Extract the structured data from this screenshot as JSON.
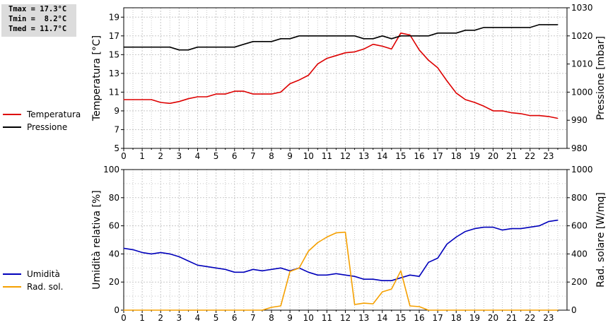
{
  "stats": {
    "tmax": "Tmax = 17.3°C",
    "tmin": "Tmin =  8.2°C",
    "tmed": "Tmed = 11.7°C"
  },
  "colors": {
    "temperature": "#dd0000",
    "pressure": "#000000",
    "humidity": "#0000bb",
    "radiation": "#f5a000",
    "grid": "#c8c8c8"
  },
  "chart_data": [
    {
      "type": "line",
      "xlim": [
        0,
        24
      ],
      "xticks": [
        "0",
        "1",
        "2",
        "3",
        "4",
        "5",
        "6",
        "7",
        "8",
        "9",
        "10",
        "11",
        "12",
        "13",
        "14",
        "15",
        "16",
        "17",
        "18",
        "19",
        "20",
        "21",
        "22",
        "23"
      ],
      "left_axis": {
        "label": "Temperatura [°C]",
        "ylim": [
          5,
          20
        ],
        "ticks": [
          "5",
          "7",
          "9",
          "11",
          "13",
          "15",
          "17",
          "19"
        ]
      },
      "right_axis": {
        "label": "Pressione [mbar]",
        "ylim": [
          980,
          1030
        ],
        "ticks": [
          "980",
          "990",
          "1000",
          "1010",
          "1020",
          "1030"
        ]
      },
      "grid": true,
      "legend_position": "left",
      "series": [
        {
          "name": "Temperatura",
          "axis": "left",
          "x": [
            0,
            0.5,
            1,
            1.5,
            2,
            2.5,
            3,
            3.5,
            4,
            4.5,
            5,
            5.5,
            6,
            6.5,
            7,
            7.5,
            8,
            8.5,
            9,
            9.5,
            10,
            10.5,
            11,
            11.5,
            12,
            12.5,
            13,
            13.5,
            14,
            14.5,
            15,
            15.5,
            16,
            16.5,
            17,
            17.5,
            18,
            18.5,
            19,
            19.5,
            20,
            20.5,
            21,
            21.5,
            22,
            22.5,
            23,
            23.5
          ],
          "values": [
            10.2,
            10.2,
            10.2,
            10.2,
            9.9,
            9.8,
            10.0,
            10.3,
            10.5,
            10.5,
            10.8,
            10.8,
            11.1,
            11.1,
            10.8,
            10.8,
            10.8,
            11.0,
            11.9,
            12.3,
            12.8,
            14.0,
            14.6,
            14.9,
            15.2,
            15.3,
            15.6,
            16.1,
            15.9,
            15.6,
            17.3,
            17.1,
            15.5,
            14.4,
            13.6,
            12.2,
            10.9,
            10.2,
            9.9,
            9.5,
            9.0,
            9.0,
            8.8,
            8.7,
            8.5,
            8.5,
            8.4,
            8.2
          ]
        },
        {
          "name": "Pressione",
          "axis": "right",
          "x": [
            0,
            0.5,
            1,
            1.5,
            2,
            2.5,
            3,
            3.5,
            4,
            4.5,
            5,
            5.5,
            6,
            6.5,
            7,
            7.5,
            8,
            8.5,
            9,
            9.5,
            10,
            10.5,
            11,
            11.5,
            12,
            12.5,
            13,
            13.5,
            14,
            14.5,
            15,
            15.5,
            16,
            16.5,
            17,
            17.5,
            18,
            18.5,
            19,
            19.5,
            20,
            20.5,
            21,
            21.5,
            22,
            22.5,
            23,
            23.5
          ],
          "values": [
            1016,
            1016,
            1016,
            1016,
            1016,
            1016,
            1015,
            1015,
            1016,
            1016,
            1016,
            1016,
            1016,
            1017,
            1018,
            1018,
            1018,
            1019,
            1019,
            1020,
            1020,
            1020,
            1020,
            1020,
            1020,
            1020,
            1019,
            1019,
            1020,
            1019,
            1020,
            1020,
            1020,
            1020,
            1021,
            1021,
            1021,
            1022,
            1022,
            1023,
            1023,
            1023,
            1023,
            1023,
            1023,
            1024,
            1024,
            1024
          ]
        }
      ]
    },
    {
      "type": "line",
      "xlim": [
        0,
        24
      ],
      "xticks": [
        "0",
        "1",
        "2",
        "3",
        "4",
        "5",
        "6",
        "7",
        "8",
        "9",
        "10",
        "11",
        "12",
        "13",
        "14",
        "15",
        "16",
        "17",
        "18",
        "19",
        "20",
        "21",
        "22",
        "23"
      ],
      "left_axis": {
        "label": "Umidità relativa [%]",
        "ylim": [
          0,
          100
        ],
        "ticks": [
          "0",
          "20",
          "40",
          "60",
          "80",
          "100"
        ]
      },
      "right_axis": {
        "label": "Rad. solare [W/mq]",
        "ylim": [
          0,
          1000
        ],
        "ticks": [
          "0",
          "200",
          "400",
          "600",
          "800",
          "1000"
        ]
      },
      "grid": true,
      "legend_position": "left",
      "series": [
        {
          "name": "Umidità",
          "axis": "left",
          "x": [
            0,
            0.5,
            1,
            1.5,
            2,
            2.5,
            3,
            3.5,
            4,
            4.5,
            5,
            5.5,
            6,
            6.5,
            7,
            7.5,
            8,
            8.5,
            9,
            9.5,
            10,
            10.5,
            11,
            11.5,
            12,
            12.5,
            13,
            13.5,
            14,
            14.5,
            15,
            15.5,
            16,
            16.5,
            17,
            17.5,
            18,
            18.5,
            19,
            19.5,
            20,
            20.5,
            21,
            21.5,
            22,
            22.5,
            23,
            23.5
          ],
          "values": [
            44,
            43,
            41,
            40,
            41,
            40,
            38,
            35,
            32,
            31,
            30,
            29,
            27,
            27,
            29,
            28,
            29,
            30,
            28,
            30,
            27,
            25,
            25,
            26,
            25,
            24,
            22,
            22,
            21,
            21,
            23,
            25,
            24,
            34,
            37,
            47,
            52,
            56,
            58,
            59,
            59,
            57,
            58,
            58,
            59,
            60,
            63,
            64
          ]
        },
        {
          "name": "Rad. sol.",
          "axis": "right",
          "x": [
            0,
            0.5,
            1,
            1.5,
            2,
            2.5,
            3,
            3.5,
            4,
            4.5,
            5,
            5.5,
            6,
            6.5,
            7,
            7.5,
            8,
            8.5,
            9,
            9.5,
            10,
            10.5,
            11,
            11.5,
            12,
            12.5,
            13,
            13.5,
            14,
            14.5,
            15,
            15.5,
            16,
            16.5,
            17,
            17.5,
            18,
            18.5,
            19,
            19.5,
            20,
            20.5,
            21,
            21.5,
            22,
            22.5,
            23,
            23.5
          ],
          "values": [
            0,
            0,
            0,
            0,
            0,
            0,
            0,
            0,
            0,
            0,
            0,
            0,
            0,
            0,
            0,
            0,
            20,
            30,
            275,
            300,
            420,
            480,
            520,
            550,
            555,
            40,
            50,
            45,
            130,
            150,
            280,
            30,
            25,
            0,
            0,
            0,
            0,
            0,
            0,
            0,
            0,
            0,
            0,
            0,
            0,
            0,
            0,
            0
          ]
        }
      ]
    }
  ]
}
